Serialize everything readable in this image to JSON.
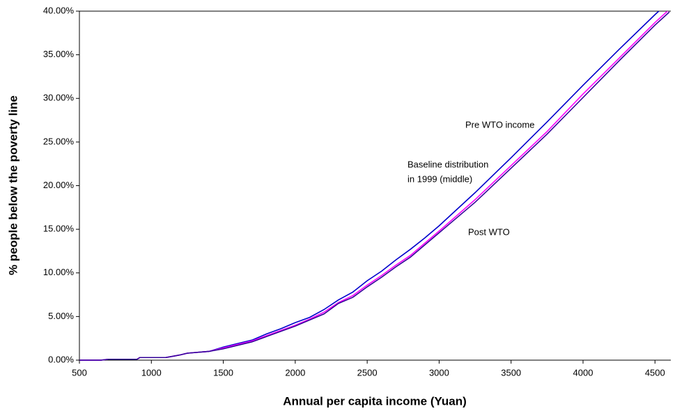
{
  "chart_data": {
    "type": "line",
    "x_label": "Annual per capita income (Yuan)",
    "y_label": "% people below the poverty line",
    "x": [
      500,
      650,
      700,
      900,
      920,
      1100,
      1200,
      1250,
      1400,
      1500,
      1600,
      1700,
      1800,
      1900,
      2000,
      2100,
      2200,
      2300,
      2400,
      2500,
      2600,
      2700,
      2800,
      2900,
      3000,
      3250,
      3500,
      3750,
      4000,
      4250,
      4500,
      4600
    ],
    "series": [
      {
        "name": "Pre WTO income",
        "color": "#0000cc",
        "values": [
          0,
          0,
          0.1,
          0.1,
          0.3,
          0.3,
          0.6,
          0.8,
          1.0,
          1.5,
          1.9,
          2.3,
          3.0,
          3.6,
          4.3,
          4.9,
          5.8,
          6.9,
          7.8,
          9.1,
          10.2,
          11.5,
          12.7,
          14.0,
          15.4,
          19.2,
          23.2,
          27.3,
          31.5,
          35.6,
          39.6,
          41.1
        ]
      },
      {
        "name": "Baseline distribution in 1999 (middle)",
        "color": "#ff00ff",
        "values": [
          0,
          0,
          0.1,
          0.1,
          0.3,
          0.3,
          0.6,
          0.8,
          1.0,
          1.4,
          1.8,
          2.2,
          2.8,
          3.4,
          4.0,
          4.7,
          5.5,
          6.6,
          7.4,
          8.6,
          9.7,
          10.9,
          12.0,
          13.4,
          14.8,
          18.4,
          22.3,
          26.2,
          30.5,
          34.6,
          38.7,
          40.2
        ]
      },
      {
        "name": "Post WTO",
        "color": "#330099",
        "values": [
          0,
          0,
          0.1,
          0.1,
          0.3,
          0.3,
          0.6,
          0.8,
          1.0,
          1.3,
          1.7,
          2.1,
          2.7,
          3.3,
          3.9,
          4.6,
          5.3,
          6.5,
          7.2,
          8.4,
          9.5,
          10.7,
          11.8,
          13.2,
          14.6,
          18.1,
          22.0,
          25.9,
          30.1,
          34.3,
          38.4,
          39.9
        ]
      }
    ],
    "annotations": [
      "Pre WTO income",
      "Baseline distribution",
      "in 1999 (middle)",
      "Post WTO"
    ],
    "xlim": [
      500,
      4610
    ],
    "xticks": [
      500,
      1000,
      1500,
      2000,
      2500,
      3000,
      3500,
      4000,
      4500
    ],
    "ylim": [
      0,
      40
    ],
    "yticks": [
      {
        "value": 0,
        "label": "0.00%"
      },
      {
        "value": 5,
        "label": "5.00%"
      },
      {
        "value": 10,
        "label": "10.00%"
      },
      {
        "value": 15,
        "label": "15.00%"
      },
      {
        "value": 20,
        "label": "20.00%"
      },
      {
        "value": 25,
        "label": "25.00%"
      },
      {
        "value": 30,
        "label": "30.00%"
      },
      {
        "value": 35,
        "label": "35.00%"
      },
      {
        "value": 40,
        "label": "40.00%"
      }
    ],
    "grid": false
  }
}
